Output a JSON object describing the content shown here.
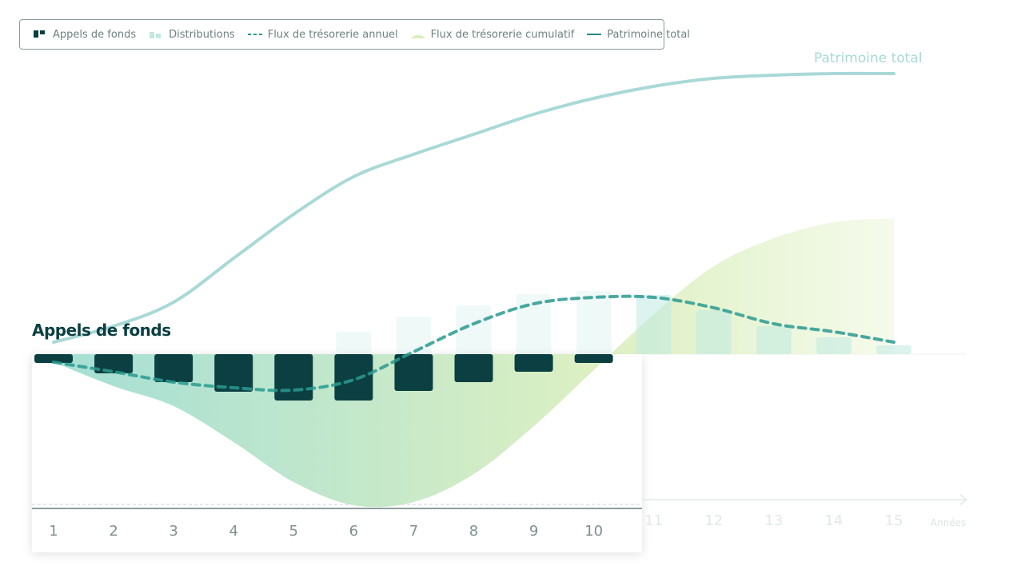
{
  "chart_data": {
    "type": "combo",
    "title": "Appels de fonds",
    "x_label": "Années",
    "x": [
      1,
      2,
      3,
      4,
      5,
      6,
      7,
      8,
      9,
      10,
      11,
      12,
      13,
      14,
      15
    ],
    "xlim": [
      1,
      15
    ],
    "ylim": [
      -200,
      370
    ],
    "series": [
      {
        "name": "Appels de fonds",
        "type": "bar",
        "color": "#0b3f42",
        "values": [
          -11,
          -24,
          -35,
          -47,
          -58,
          -58,
          -46,
          -35,
          -22,
          -11,
          null,
          null,
          null,
          null,
          null
        ]
      },
      {
        "name": "Distributions",
        "type": "bar",
        "color": "#bfe9e2",
        "values": [
          null,
          null,
          null,
          null,
          null,
          28,
          47,
          61,
          75,
          79,
          74,
          55,
          35,
          21,
          11
        ]
      },
      {
        "name": "Flux de trésorerie annuel",
        "type": "dashed-line",
        "color": "#2a9a8f",
        "values": [
          -10,
          -22,
          -35,
          -42,
          -45,
          -32,
          3,
          38,
          63,
          71,
          71,
          58,
          38,
          28,
          15
        ]
      },
      {
        "name": "Flux de trésorerie cumulatif",
        "type": "area",
        "color": "#d9eebb",
        "values": [
          -10,
          -40,
          -65,
          -110,
          -160,
          -189,
          -185,
          -150,
          -90,
          -20,
          50,
          110,
          145,
          165,
          170
        ]
      },
      {
        "name": "Patrimoine total",
        "type": "line",
        "color": "#a9d9d6",
        "values": [
          15,
          35,
          65,
          120,
          175,
          222,
          250,
          275,
          300,
          320,
          335,
          345,
          349,
          351,
          351
        ]
      }
    ]
  }
}
